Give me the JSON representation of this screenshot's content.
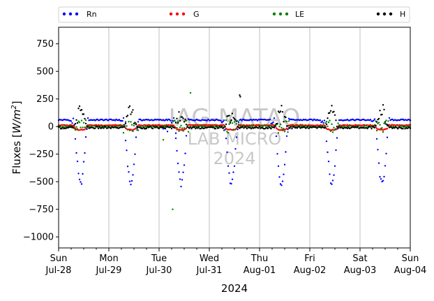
{
  "chart_data": {
    "type": "scatter",
    "title": "",
    "xlabel": "2024",
    "ylabel_text": "Fluxes [",
    "ylabel_unit_base": "W/m",
    "ylabel_unit_exp": "2",
    "ylabel_close": "]",
    "ylim": [
      -1100,
      900
    ],
    "yticks": [
      750,
      500,
      250,
      0,
      -250,
      -500,
      -750,
      -1000
    ],
    "xlim_hours": [
      0,
      168
    ],
    "xticks": [
      {
        "hour": 0,
        "day": "Sun",
        "date": "Jul-28"
      },
      {
        "hour": 24,
        "day": "Mon",
        "date": "Jul-29"
      },
      {
        "hour": 48,
        "day": "Tue",
        "date": "Jul-30"
      },
      {
        "hour": 72,
        "day": "Wed",
        "date": "Jul-31"
      },
      {
        "hour": 96,
        "day": "Thu",
        "date": "Aug-01"
      },
      {
        "hour": 120,
        "day": "Fri",
        "date": "Aug-02"
      },
      {
        "hour": 144,
        "day": "Sat",
        "date": "Aug-03"
      },
      {
        "hour": 168,
        "day": "Sun",
        "date": "Aug-04"
      }
    ],
    "grid": "vertical",
    "legend_position": "top",
    "watermark": [
      "IAG-MATAO",
      "LAB MICRO",
      "2024"
    ],
    "series": [
      {
        "name": "Rn",
        "color": "#0000ff",
        "night_value": 60,
        "day_min": -520,
        "anomalies": [
          {
            "h": 50,
            "v": -20
          },
          {
            "h": 52,
            "v": -45
          },
          {
            "h": 56,
            "v": -60
          }
        ]
      },
      {
        "name": "G",
        "color": "#ff0000",
        "night_value": 12,
        "day_min": -30,
        "anomalies": []
      },
      {
        "name": "LE",
        "color": "#008000",
        "night_value": 0,
        "day_amp": 60,
        "anomalies": [
          {
            "h": 54.5,
            "v": -750
          },
          {
            "h": 63,
            "v": 305
          },
          {
            "h": 50,
            "v": -120
          }
        ]
      },
      {
        "name": "H",
        "color": "#000000",
        "night_value": -10,
        "day_max": 200,
        "anomalies": [
          {
            "h": 86.5,
            "v": 285
          },
          {
            "h": 86.8,
            "v": 270
          }
        ]
      }
    ]
  }
}
